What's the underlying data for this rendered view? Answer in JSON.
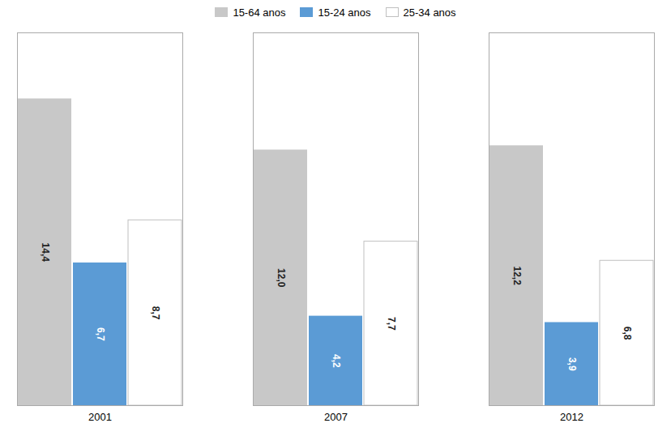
{
  "chart_data": {
    "type": "bar",
    "categories": [
      "2001",
      "2007",
      "2012"
    ],
    "series": [
      {
        "name": "15-64 anos",
        "color": "#c8c8c8",
        "values": [
          14.4,
          12.0,
          12.2
        ],
        "value_labels": [
          "14,4",
          "12,0",
          "12,2"
        ]
      },
      {
        "name": "15-24 anos",
        "color": "#5b9bd5",
        "values": [
          6.7,
          4.2,
          3.9
        ],
        "value_labels": [
          "6,7",
          "4,2",
          "3,9"
        ]
      },
      {
        "name": "25-34 anos",
        "color": "#ffffff",
        "values": [
          8.7,
          7.7,
          6.8
        ],
        "value_labels": [
          "8,7",
          "7,7",
          "6,8"
        ]
      }
    ],
    "ylim": [
      0,
      17.5
    ],
    "tick_labels": "x",
    "grid": false,
    "data_labels": true,
    "legend": "top"
  }
}
